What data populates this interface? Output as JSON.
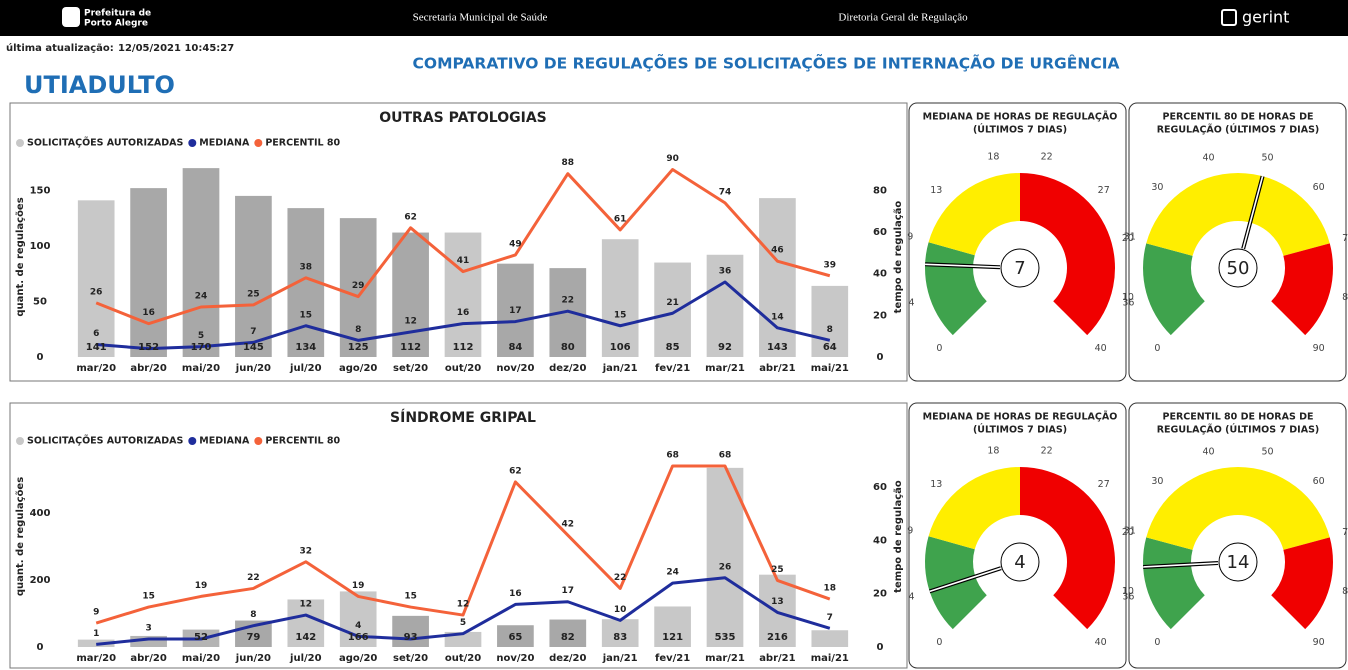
{
  "header": {
    "logo_line1": "Prefeitura de",
    "logo_line2": "Porto Alegre",
    "secretaria": "Secretaria Municipal de Saúde",
    "diretoria": "Diretoria Geral de Regulação",
    "brand": "gerint"
  },
  "update_label": "última atualização:",
  "update_value": "12/05/2021 10:45:27",
  "page_title": "UTIADULTO",
  "main_title": "COMPARATIVO DE REGULAÇÕES DE SOLICITAÇÕES DE INTERNAÇÃO DE URGÊNCIA",
  "chart_data": [
    {
      "type": "combo",
      "title": "OUTRAS PATOLOGIAS",
      "y_label": "quant. de regulações",
      "y2_label": "tempo de regulação",
      "categories": [
        "mar/20",
        "abr/20",
        "mai/20",
        "jun/20",
        "jul/20",
        "ago/20",
        "set/20",
        "out/20",
        "nov/20",
        "dez/20",
        "jan/21",
        "fev/21",
        "mar/21",
        "abr/21",
        "mai/21"
      ],
      "ylim": [
        0,
        180
      ],
      "yticks": [
        0,
        50,
        100,
        150
      ],
      "y2lim": [
        0,
        96
      ],
      "y2ticks": [
        0,
        20,
        40,
        60,
        80
      ],
      "series": [
        {
          "name": "SOLICITAÇÕES AUTORIZADAS",
          "kind": "bar",
          "color": "#c8c8c8",
          "colors": [
            "#c8c8c8",
            "#a8a8a8",
            "#a8a8a8",
            "#a8a8a8",
            "#a8a8a8",
            "#a8a8a8",
            "#a8a8a8",
            "#c8c8c8",
            "#a8a8a8",
            "#a8a8a8",
            "#c8c8c8",
            "#c8c8c8",
            "#c8c8c8",
            "#c8c8c8",
            "#c8c8c8"
          ],
          "values": [
            141,
            152,
            170,
            145,
            134,
            125,
            112,
            112,
            84,
            80,
            106,
            85,
            92,
            143,
            64
          ]
        },
        {
          "name": "MEDIANA",
          "kind": "line",
          "axis": "y2",
          "color": "#1f2d9c",
          "values": [
            6,
            4,
            5,
            7,
            15,
            8,
            12,
            16,
            17,
            22,
            15,
            21,
            36,
            14,
            8
          ],
          "value_labels": [
            "6",
            null,
            "5",
            "7",
            "15",
            "8",
            "12",
            "16",
            "17",
            "22",
            "15",
            "21",
            "36",
            "14",
            "8"
          ]
        },
        {
          "name": "PERCENTIL 80",
          "kind": "line",
          "axis": "y2",
          "color": "#f4623a",
          "values": [
            26,
            16,
            24,
            25,
            38,
            29,
            62,
            41,
            49,
            88,
            61,
            90,
            74,
            46,
            39
          ]
        }
      ]
    },
    {
      "type": "gauge",
      "title": [
        "MEDIANA DE HORAS DE REGULAÇÃO",
        "(ÚLTIMOS 7 DIAS)"
      ],
      "value": 7,
      "ylim": [
        0,
        40
      ],
      "yticks": [
        0,
        4,
        9,
        13,
        18,
        22,
        27,
        31,
        36,
        40
      ],
      "bands": [
        {
          "from": 0,
          "to": 9,
          "color": "#3fa34d"
        },
        {
          "from": 9,
          "to": 20,
          "color": "#ffee00"
        },
        {
          "from": 20,
          "to": 40,
          "color": "#f00000"
        }
      ]
    },
    {
      "type": "gauge",
      "title": [
        "PERCENTIL 80 DE HORAS DE",
        "REGULAÇÃO (ÚLTIMOS 7 DIAS)"
      ],
      "value": 50,
      "ylim": [
        0,
        90
      ],
      "yticks": [
        0,
        10,
        20,
        30,
        40,
        50,
        60,
        70,
        80,
        90
      ],
      "bands": [
        {
          "from": 0,
          "to": 20,
          "color": "#3fa34d"
        },
        {
          "from": 20,
          "to": 70,
          "color": "#ffee00"
        },
        {
          "from": 70,
          "to": 90,
          "color": "#f00000"
        }
      ]
    },
    {
      "type": "combo",
      "title": "SÍNDROME GRIPAL",
      "y_label": "quant. de regulações",
      "y2_label": "tempo de regulação",
      "categories": [
        "mar/20",
        "abr/20",
        "mai/20",
        "jun/20",
        "jul/20",
        "ago/20",
        "set/20",
        "out/20",
        "nov/20",
        "dez/20",
        "jan/21",
        "fev/21",
        "mar/21",
        "abr/21",
        "mai/21"
      ],
      "ylim": [
        0,
        660
      ],
      "yticks": [
        0,
        200,
        400
      ],
      "y2lim": [
        0,
        83
      ],
      "y2ticks": [
        0,
        20,
        40,
        60
      ],
      "series": [
        {
          "name": "SOLICITAÇÕES AUTORIZADAS",
          "kind": "bar",
          "color": "#c8c8c8",
          "colors": [
            "#c8c8c8",
            "#b4b4b4",
            "#b4b4b4",
            "#a8a8a8",
            "#c8c8c8",
            "#c8c8c8",
            "#a8a8a8",
            "#c8c8c8",
            "#a8a8a8",
            "#a8a8a8",
            "#c8c8c8",
            "#c8c8c8",
            "#c8c8c8",
            "#c8c8c8",
            "#c8c8c8"
          ],
          "values": [
            22,
            33,
            52,
            79,
            142,
            166,
            93,
            45,
            65,
            82,
            83,
            121,
            535,
            216,
            50
          ],
          "value_labels": [
            null,
            null,
            "52",
            "79",
            "142",
            "166",
            "93",
            null,
            "65",
            "82",
            "83",
            "121",
            "535",
            "216",
            null
          ]
        },
        {
          "name": "MEDIANA",
          "kind": "line",
          "axis": "y2",
          "color": "#1f2d9c",
          "values": [
            1,
            3,
            3,
            8,
            12,
            4,
            3,
            5,
            16,
            17,
            10,
            24,
            26,
            13,
            7
          ],
          "value_labels": [
            "1",
            "3",
            null,
            "8",
            "12",
            "4",
            null,
            "5",
            "16",
            "17",
            "10",
            "24",
            "26",
            "13",
            "7"
          ]
        },
        {
          "name": "PERCENTIL 80",
          "kind": "line",
          "axis": "y2",
          "color": "#f4623a",
          "values": [
            9,
            15,
            19,
            22,
            32,
            19,
            15,
            12,
            62,
            42,
            22,
            68,
            68,
            25,
            18
          ]
        }
      ]
    },
    {
      "type": "gauge",
      "title": [
        "MEDIANA DE HORAS DE REGULAÇÃO",
        "(ÚLTIMOS 7 DIAS)"
      ],
      "value": 4,
      "ylim": [
        0,
        40
      ],
      "yticks": [
        0,
        4,
        9,
        13,
        18,
        22,
        27,
        31,
        36,
        40
      ],
      "bands": [
        {
          "from": 0,
          "to": 9,
          "color": "#3fa34d"
        },
        {
          "from": 9,
          "to": 20,
          "color": "#ffee00"
        },
        {
          "from": 20,
          "to": 40,
          "color": "#f00000"
        }
      ]
    },
    {
      "type": "gauge",
      "title": [
        "PERCENTIL 80 DE HORAS DE",
        "REGULAÇÃO (ÚLTIMOS 7 DIAS)"
      ],
      "value": 14,
      "ylim": [
        0,
        90
      ],
      "yticks": [
        0,
        10,
        20,
        30,
        40,
        50,
        60,
        70,
        80,
        90
      ],
      "bands": [
        {
          "from": 0,
          "to": 20,
          "color": "#3fa34d"
        },
        {
          "from": 20,
          "to": 70,
          "color": "#ffee00"
        },
        {
          "from": 70,
          "to": 90,
          "color": "#f00000"
        }
      ]
    }
  ]
}
